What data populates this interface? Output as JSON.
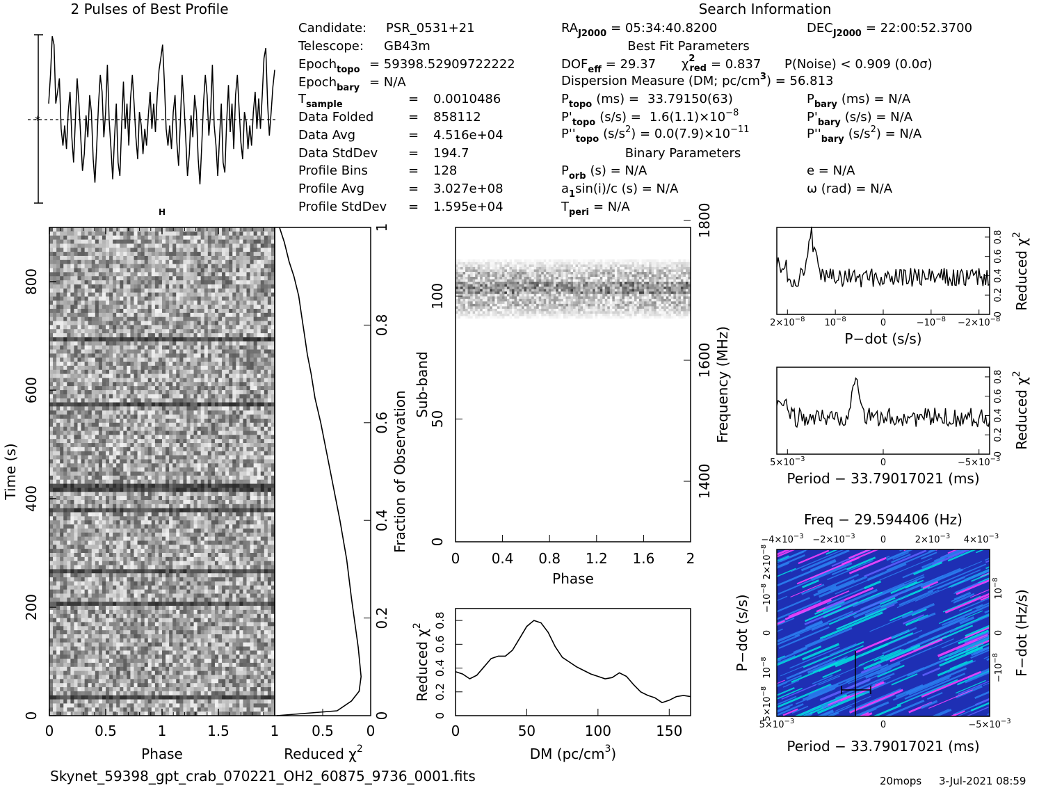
{
  "profile": {
    "title": "2 Pulses of Best Profile"
  },
  "header": {
    "search_title": "Search Information",
    "rows": [
      {
        "label": "Candidate:",
        "value": "PSR_0531+21"
      },
      {
        "label": "Telescope:",
        "value": "GB43m"
      },
      {
        "label": "Epoch",
        "sub": "topo",
        "value": "= 59398.52909722222"
      },
      {
        "label": "Epoch",
        "sub": "bary",
        "value": "= N/A"
      },
      {
        "label": "T",
        "sub": "sample",
        "value": "0.0010486"
      },
      {
        "label": "Data Folded",
        "value": "858112"
      },
      {
        "label": "Data Avg",
        "value": "4.516e+04"
      },
      {
        "label": "Data StdDev",
        "value": "194.7"
      },
      {
        "label": "Profile Bins",
        "value": "128"
      },
      {
        "label": "Profile Avg",
        "value": "3.027e+08"
      },
      {
        "label": "Profile StdDev",
        "value": "1.595e+04"
      }
    ],
    "ra": {
      "label": "RA",
      "sub": "J2000",
      "value": "= 05:34:40.8200"
    },
    "dec": {
      "label": "DEC",
      "sub": "J2000",
      "value": "= 22:00:52.3700"
    },
    "best_fit_title": "Best Fit Parameters",
    "dof": {
      "label": "DOF",
      "sub": "eff",
      "value": "= 29.37"
    },
    "chi2": {
      "label": "χ",
      "sup": "2",
      "sub": "red",
      "value": "= 0.837"
    },
    "pnoise": "P(Noise) < 0.909   (0.0σ)",
    "dm_line": "Dispersion Measure (DM; pc/cm",
    "dm_line_sup": "3",
    "dm_line_end": ") = 56.813",
    "ptopo": {
      "label": "P",
      "sub": "topo",
      "unit": "(ms) =",
      "value": "33.79150(63)"
    },
    "pbary": {
      "label": "P",
      "sub": "bary",
      "unit": "(ms) = N/A"
    },
    "pdtopo": {
      "label": "P'",
      "sub": "topo",
      "unit": "(s/s) =",
      "value": "1.6(1.1)×10",
      "exp": "−8"
    },
    "pdbary": {
      "label": "P'",
      "sub": "bary",
      "unit": "(s/s) = N/A"
    },
    "pddtopo": {
      "label": "P''",
      "sub": "topo",
      "unit": "(s/s",
      "unit_sup": "2",
      "unit_end": ") = 0.0(7.9)×10",
      "exp": "−11"
    },
    "pddbary": {
      "label": "P''",
      "sub": "bary",
      "unit": "(s/s",
      "unit_sup": "2",
      "unit_end": ") = N/A"
    },
    "binary_title": "Binary Parameters",
    "porb": {
      "label": "P",
      "sub": "orb",
      "value": "(s) = N/A"
    },
    "e": "e = N/A",
    "a1": {
      "label": "a",
      "sub": "1",
      "value": "sin(i)/c (s) = N/A"
    },
    "omega": "ω (rad) = N/A",
    "tperi": {
      "label": "T",
      "sub": "peri",
      "value": "= N/A"
    }
  },
  "footer": {
    "filename": "Skynet_59398_gpt_crab_070221_OH2_60875_9736_0001.fits",
    "program": "20mops",
    "date": "3-Jul-2021 08:59"
  },
  "colors": {
    "line": "#000000",
    "fft_low": "#1e2fb4",
    "fft_mid": "#00e0e0",
    "fft_high": "#ff40ff"
  },
  "chart_data": [
    {
      "id": "time_phase",
      "type": "heatmap",
      "xlabel": "Phase",
      "ylabel": "Time (s)",
      "xlim": [
        0,
        2
      ],
      "ylim": [
        0,
        900
      ],
      "xticks": [
        "0",
        "0.5",
        "1",
        "1.5"
      ],
      "yticks": [
        "0",
        "200",
        "400",
        "600",
        "800"
      ],
      "marker": "H",
      "dark_rows_time_s": [
        40,
        210,
        270,
        380,
        420,
        430,
        580,
        700
      ]
    },
    {
      "id": "time_chi2",
      "type": "line",
      "xlabel": "Reduced χ",
      "xlabel_sup": "2",
      "ylabel": "Fraction of Observation",
      "xlim": [
        1,
        0
      ],
      "ylim": [
        0,
        1
      ],
      "xticks": [
        "1",
        "0.5",
        "0"
      ],
      "yticks": [
        "0",
        "0.2",
        "0.4",
        "0.6",
        "0.8",
        "1"
      ],
      "x": [
        0.95,
        0.9,
        0.85,
        0.8,
        0.75,
        0.72,
        0.69,
        0.66,
        0.62,
        0.58,
        0.52,
        0.46,
        0.4,
        0.32,
        0.25,
        0.2,
        0.13,
        0.1,
        0.12,
        0.2,
        0.35
      ],
      "y": [
        1.0,
        0.97,
        0.93,
        0.9,
        0.86,
        0.82,
        0.78,
        0.74,
        0.7,
        0.65,
        0.6,
        0.54,
        0.48,
        0.4,
        0.32,
        0.24,
        0.14,
        0.08,
        0.05,
        0.03,
        0.01
      ]
    },
    {
      "id": "subband_phase",
      "type": "heatmap",
      "xlabel": "Phase",
      "ylabel": "Sub-band",
      "y2label": "Frequency (MHz)",
      "xlim": [
        0,
        2
      ],
      "ylim": [
        0,
        128
      ],
      "xticks": [
        "0",
        "0.4",
        "0.8",
        "1.2",
        "1.6",
        "2"
      ],
      "yticks": [
        "0",
        "50",
        "100"
      ],
      "y2ticks": [
        "1400",
        "1600",
        "1800"
      ],
      "active_band": [
        90,
        115
      ]
    },
    {
      "id": "dm_chi2",
      "type": "line",
      "xlabel": "DM (pc/cm",
      "xlabel_sup": "3",
      "xlabel_end": ")",
      "ylabel": "Reduced χ",
      "ylabel_sup": "2",
      "xlim": [
        0,
        165
      ],
      "ylim": [
        0,
        0.9
      ],
      "xticks": [
        "0",
        "50",
        "100",
        "150"
      ],
      "yticks": [
        "0",
        "0.2",
        "0.4",
        "0.6",
        "0.8"
      ],
      "x": [
        0,
        5,
        10,
        15,
        20,
        25,
        30,
        35,
        40,
        45,
        50,
        55,
        60,
        65,
        70,
        75,
        80,
        85,
        90,
        95,
        100,
        105,
        110,
        115,
        120,
        125,
        130,
        135,
        140,
        145,
        150,
        155,
        160,
        165
      ],
      "y": [
        0.37,
        0.35,
        0.31,
        0.34,
        0.41,
        0.48,
        0.5,
        0.5,
        0.55,
        0.65,
        0.75,
        0.8,
        0.78,
        0.7,
        0.58,
        0.49,
        0.45,
        0.41,
        0.38,
        0.35,
        0.33,
        0.31,
        0.32,
        0.36,
        0.33,
        0.26,
        0.2,
        0.17,
        0.15,
        0.11,
        0.13,
        0.16,
        0.17,
        0.16
      ]
    },
    {
      "id": "pdot_chi2",
      "type": "line",
      "xlabel": "P−dot (s/s)",
      "ylabel": "Reduced χ",
      "ylabel_sup": "2",
      "xticks": [
        "2×10",
        "10",
        "0",
        "−10",
        "−2×10"
      ],
      "xtick_exp": "−8",
      "yticks": [
        "0",
        "0.2",
        "0.4",
        "0.6",
        "0.8"
      ],
      "ylim": [
        0,
        0.9
      ],
      "peak_x_fraction": 0.16,
      "peak_y": 0.82
    },
    {
      "id": "period_chi2",
      "type": "line",
      "xlabel": "Period − 33.79017021 (ms)",
      "ylabel": "Reduced χ",
      "ylabel_sup": "2",
      "xticks": [
        "5×10",
        "0",
        "−5×10"
      ],
      "xtick_exp": "−3",
      "yticks": [
        "0",
        "0.2",
        "0.4",
        "0.6",
        "0.8"
      ],
      "ylim": [
        0,
        0.9
      ],
      "peak_x_fraction": 0.37,
      "peak_y": 0.86
    },
    {
      "id": "period_pdot",
      "type": "heatmap",
      "title": "Freq − 29.594406 (Hz)",
      "xlabel": "Period − 33.79017021 (ms)",
      "ylabel": "P−dot (s/s)",
      "y2label": "F−dot (Hz/s)",
      "xticks_bottom": [
        "5×10",
        "0",
        "−5×10"
      ],
      "xticks_top": [
        "−4×10",
        "−2×10",
        "0",
        "2×10",
        "4×10"
      ],
      "yticks_left": [
        "5×10",
        "10",
        "0",
        "−10",
        "2×10"
      ],
      "yticks_right": [
        "10",
        "0",
        "−10"
      ],
      "tick_exp_ms": "−3",
      "tick_exp_pdot": "−8"
    },
    {
      "id": "best_profile",
      "type": "line",
      "title": "2 Pulses of Best Profile",
      "values": [
        0.55,
        0.72,
        0.95,
        0.9,
        0.55,
        0.62,
        0.7,
        0.4,
        0.3,
        0.42,
        0.28,
        0.5,
        0.62,
        0.35,
        0.2,
        0.45,
        0.7,
        0.55,
        0.35,
        0.15,
        0.25,
        0.48,
        0.35,
        0.6,
        0.5,
        0.22,
        0.08,
        0.3,
        0.55,
        0.72,
        0.62,
        0.35,
        0.5,
        0.78,
        0.45,
        0.28,
        0.1,
        0.35,
        0.55,
        0.2,
        0.12,
        0.42,
        0.68,
        0.4,
        0.55,
        0.3,
        0.58,
        0.72,
        0.55,
        0.35,
        0.22,
        0.5,
        0.42,
        0.25,
        0.4,
        0.3,
        0.48,
        0.62,
        0.4,
        0.55,
        0.38,
        0.6,
        0.75,
        0.82,
        0.9,
        0.68,
        0.4,
        0.3,
        0.42,
        0.28,
        0.5,
        0.6,
        0.32,
        0.18,
        0.45,
        0.72,
        0.55,
        0.35,
        0.12,
        0.25,
        0.48,
        0.35,
        0.6,
        0.5,
        0.22,
        0.07,
        0.3,
        0.55,
        0.72,
        0.6,
        0.36,
        0.5,
        0.78,
        0.42,
        0.3,
        0.12,
        0.35,
        0.55,
        0.2,
        0.14,
        0.44,
        0.66,
        0.38,
        0.55,
        0.28,
        0.6,
        0.72,
        0.52,
        0.32,
        0.22,
        0.5,
        0.44,
        0.28,
        0.42,
        0.3,
        0.5,
        0.62,
        0.4,
        0.58,
        0.4,
        0.6,
        0.82,
        0.88,
        0.55,
        0.36,
        0.5,
        0.65,
        0.75
      ]
    }
  ]
}
